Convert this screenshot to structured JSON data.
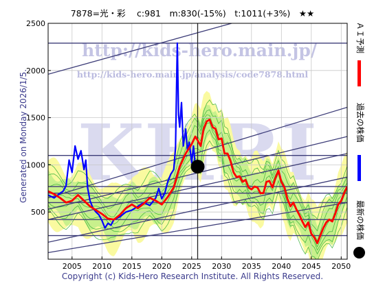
{
  "header": {
    "title": "7878=光・彩　 c:981　m:830(-15%)　t:1011(+3%)　★★"
  },
  "side_note": "Generated on Monday 2026/1/5.",
  "footer": "Copyright (c) Kids-Hero Research Institute. All Rights Reserved.",
  "watermarks": {
    "url1": "http://kids-hero.main.jp/",
    "url2": "http://kids-hero.main.jp/analysis/code7878.html",
    "big": "KHRI"
  },
  "legend": [
    {
      "label": "ＡＩ予測",
      "color": "#ff0000"
    },
    {
      "label": "過去の株価",
      "color": "#0000ff"
    },
    {
      "label": "最新の株価",
      "color": "#000000"
    }
  ],
  "colors": {
    "band_outer": "#fafaa0",
    "band_inner": "#c8f08c",
    "band_lines": "#3cb43c",
    "trend_lines": "#3c3c78",
    "ai": "#ff0000",
    "past": "#0000ff"
  },
  "chart_data": {
    "type": "line",
    "xlim": [
      2001,
      2051
    ],
    "ylim": [
      0,
      2500
    ],
    "xticks": [
      2005,
      2010,
      2015,
      2020,
      2025,
      2030,
      2035,
      2040,
      2045,
      2050
    ],
    "yticks": [
      500,
      1000,
      1500,
      2000,
      2500
    ],
    "latest": {
      "x": 2026.0,
      "y": 981
    },
    "horizontal_levels": [
      250,
      420,
      600,
      700,
      770,
      1100,
      2290
    ],
    "trend_lines": [
      {
        "x": [
          2001,
          2051
        ],
        "y": [
          1960,
          2840
        ]
      },
      {
        "x": [
          2001,
          2051
        ],
        "y": [
          650,
          1610
        ]
      },
      {
        "x": [
          2001,
          2051
        ],
        "y": [
          530,
          1300
        ]
      },
      {
        "x": [
          2001,
          2051
        ],
        "y": [
          420,
          1120
        ]
      },
      {
        "x": [
          2001,
          2051
        ],
        "y": [
          180,
          870
        ]
      },
      {
        "x": [
          2001,
          2051
        ],
        "y": [
          70,
          600
        ]
      }
    ],
    "series": [
      {
        "x": [
          2001,
          2002,
          2003,
          2003.5,
          2004,
          2004.5,
          2005,
          2005.5,
          2006,
          2006.5,
          2007,
          2007.3,
          2007.6,
          2008,
          2008.5,
          2009,
          2009.5,
          2010,
          2010.5,
          2011,
          2011.5,
          2012,
          2013,
          2014,
          2015,
          2016,
          2017,
          2018,
          2019,
          2019.5,
          2020,
          2020.5,
          2021,
          2021.5,
          2022,
          2022.3,
          2022.6,
          2022.8,
          2023,
          2023.3,
          2023.6,
          2024,
          2024.3,
          2024.6,
          2025,
          2025.3,
          2025.6,
          2026
        ],
        "y": [
          680,
          650,
          700,
          720,
          780,
          1050,
          920,
          1200,
          1060,
          1150,
          950,
          1050,
          760,
          620,
          540,
          500,
          470,
          410,
          330,
          380,
          360,
          420,
          450,
          500,
          520,
          560,
          600,
          570,
          650,
          750,
          640,
          700,
          820,
          900,
          950,
          1180,
          2290,
          1530,
          1400,
          1660,
          1200,
          1380,
          1150,
          1240,
          1020,
          1200,
          1000,
          981
        ]
      },
      {
        "x": [
          2001,
          2002,
          2003,
          2004,
          2005,
          2006,
          2007,
          2008,
          2009,
          2010,
          2011,
          2012,
          2013,
          2014,
          2015,
          2016,
          2017,
          2018,
          2019,
          2020,
          2021,
          2022,
          2023,
          2024,
          2025,
          2025.6,
          2026,
          2026.5,
          2027,
          2027.5,
          2028,
          2028.5,
          2029,
          2029.5,
          2030,
          2030.5,
          2031,
          2031.5,
          2032,
          2032.5,
          2033,
          2033.5,
          2034,
          2034.5,
          2035,
          2035.5,
          2036,
          2036.5,
          2037,
          2037.5,
          2038,
          2038.5,
          2039,
          2039.5,
          2040,
          2040.5,
          2041,
          2041.5,
          2042,
          2042.5,
          2043,
          2043.5,
          2044,
          2044.5,
          2045,
          2045.5,
          2046,
          2046.5,
          2047,
          2047.5,
          2048,
          2048.5,
          2049,
          2049.5,
          2050,
          2050.5,
          2051
        ],
        "y": [
          720,
          690,
          650,
          600,
          620,
          680,
          620,
          560,
          520,
          480,
          430,
          420,
          470,
          540,
          580,
          540,
          590,
          650,
          620,
          580,
          660,
          760,
          980,
          1120,
          1220,
          1300,
          1260,
          1200,
          1380,
          1460,
          1480,
          1400,
          1380,
          1270,
          1280,
          1120,
          1120,
          1040,
          920,
          870,
          880,
          820,
          840,
          760,
          740,
          770,
          760,
          700,
          700,
          820,
          830,
          760,
          860,
          940,
          820,
          760,
          640,
          560,
          600,
          530,
          470,
          400,
          340,
          390,
          270,
          230,
          170,
          250,
          330,
          390,
          420,
          400,
          480,
          580,
          620,
          700,
          770
        ]
      }
    ]
  }
}
